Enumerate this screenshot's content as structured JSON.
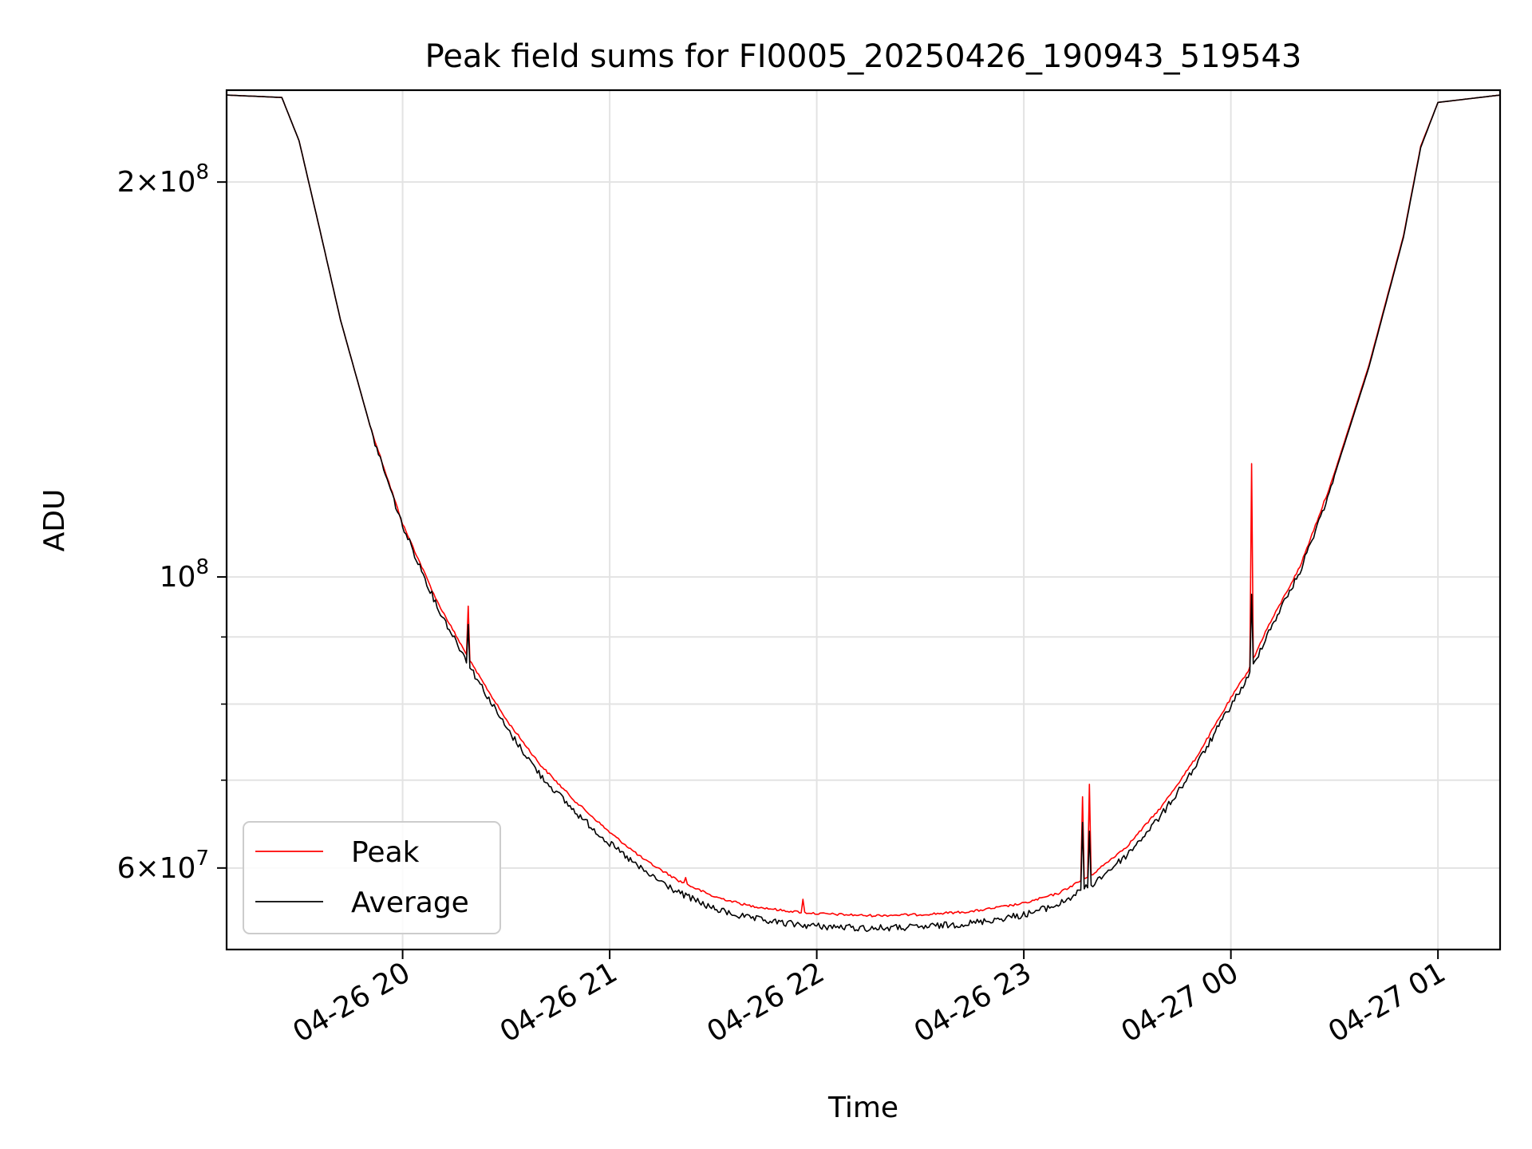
{
  "chart_data": {
    "type": "line",
    "title": "Peak field sums for FI0005_20250426_190943_519543",
    "xlabel": "Time",
    "ylabel": "ADU",
    "y_scale": "log",
    "ylim": [
      52000000,
      235000000
    ],
    "xlim": [
      "2025-04-26 19:09",
      "2025-04-27 01:18"
    ],
    "x_tick_labels": [
      "04-26 20",
      "04-26 21",
      "04-26 22",
      "04-26 23",
      "04-27 00",
      "04-27 01"
    ],
    "y_tick_labels": [
      {
        "value": 200000000,
        "mantissa": "2",
        "exponent": "8"
      },
      {
        "value": 100000000,
        "mantissa": "",
        "exponent": "8"
      },
      {
        "value": 60000000,
        "mantissa": "6",
        "exponent": "7"
      }
    ],
    "grid": true,
    "legend_position": "lower-left",
    "series": [
      {
        "name": "Peak",
        "color": "#ff0000",
        "points": [
          [
            "2025-04-26 19:09",
            233000000
          ],
          [
            "2025-04-26 19:25",
            232000000
          ],
          [
            "2025-04-26 19:30",
            215000000
          ],
          [
            "2025-04-26 19:36",
            184000000
          ],
          [
            "2025-04-26 19:42",
            157000000
          ],
          [
            "2025-04-26 19:50",
            132000000
          ],
          [
            "2025-04-26 20:00",
            110000000
          ],
          [
            "2025-04-26 20:10",
            96000000
          ],
          [
            "2025-04-26 20:20",
            86000000
          ],
          [
            "2025-04-26 20:30",
            78000000
          ],
          [
            "2025-04-26 20:40",
            72000000
          ],
          [
            "2025-04-26 20:50",
            67600000
          ],
          [
            "2025-04-26 21:00",
            64000000
          ],
          [
            "2025-04-26 21:10",
            61000000
          ],
          [
            "2025-04-26 21:20",
            58800000
          ],
          [
            "2025-04-26 21:30",
            57200000
          ],
          [
            "2025-04-26 21:40",
            56300000
          ],
          [
            "2025-04-26 21:50",
            55800000
          ],
          [
            "2025-04-26 22:00",
            55500000
          ],
          [
            "2025-04-26 22:15",
            55300000
          ],
          [
            "2025-04-26 22:30",
            55400000
          ],
          [
            "2025-04-26 22:45",
            55700000
          ],
          [
            "2025-04-26 23:00",
            56500000
          ],
          [
            "2025-04-26 23:10",
            57500000
          ],
          [
            "2025-04-26 23:20",
            59500000
          ],
          [
            "2025-04-26 23:30",
            62500000
          ],
          [
            "2025-04-26 23:40",
            67000000
          ],
          [
            "2025-04-26 23:50",
            73000000
          ],
          [
            "2025-04-27 00:00",
            81000000
          ],
          [
            "2025-04-27 00:05",
            85000000
          ],
          [
            "2025-04-27 00:10",
            91000000
          ],
          [
            "2025-04-27 00:20",
            102000000
          ],
          [
            "2025-04-27 00:30",
            120000000
          ],
          [
            "2025-04-27 00:40",
            145000000
          ],
          [
            "2025-04-27 00:50",
            182000000
          ],
          [
            "2025-04-27 00:55",
            213000000
          ],
          [
            "2025-04-27 01:00",
            230000000
          ],
          [
            "2025-04-27 01:18",
            233000000
          ]
        ],
        "spikes": [
          [
            "2025-04-26 20:19",
            95000000
          ],
          [
            "2025-04-26 21:22",
            59000000
          ],
          [
            "2025-04-26 21:56",
            56800000
          ],
          [
            "2025-04-26 23:17",
            68000000
          ],
          [
            "2025-04-26 23:19",
            69500000
          ],
          [
            "2025-04-27 00:06",
            122000000
          ]
        ]
      },
      {
        "name": "Average",
        "color": "#000000",
        "points": [
          [
            "2025-04-26 19:09",
            233000000
          ],
          [
            "2025-04-26 19:25",
            232000000
          ],
          [
            "2025-04-26 19:30",
            215000000
          ],
          [
            "2025-04-26 19:36",
            184000000
          ],
          [
            "2025-04-26 19:42",
            157000000
          ],
          [
            "2025-04-26 19:50",
            132000000
          ],
          [
            "2025-04-26 20:00",
            110000000
          ],
          [
            "2025-04-26 20:10",
            95500000
          ],
          [
            "2025-04-26 20:20",
            85500000
          ],
          [
            "2025-04-26 20:30",
            77200000
          ],
          [
            "2025-04-26 20:40",
            71000000
          ],
          [
            "2025-04-26 20:50",
            66600000
          ],
          [
            "2025-04-26 21:00",
            63000000
          ],
          [
            "2025-04-26 21:10",
            60000000
          ],
          [
            "2025-04-26 21:20",
            57800000
          ],
          [
            "2025-04-26 21:30",
            56200000
          ],
          [
            "2025-04-26 21:40",
            55300000
          ],
          [
            "2025-04-26 21:50",
            54800000
          ],
          [
            "2025-04-26 22:00",
            54500000
          ],
          [
            "2025-04-26 22:15",
            54300000
          ],
          [
            "2025-04-26 22:30",
            54400000
          ],
          [
            "2025-04-26 22:45",
            54800000
          ],
          [
            "2025-04-26 23:00",
            55600000
          ],
          [
            "2025-04-26 23:10",
            56600000
          ],
          [
            "2025-04-26 23:20",
            58700000
          ],
          [
            "2025-04-26 23:30",
            61800000
          ],
          [
            "2025-04-26 23:40",
            66300000
          ],
          [
            "2025-04-26 23:50",
            72300000
          ],
          [
            "2025-04-27 00:00",
            80300000
          ],
          [
            "2025-04-27 00:05",
            84300000
          ],
          [
            "2025-04-27 00:10",
            90400000
          ],
          [
            "2025-04-27 00:20",
            101500000
          ],
          [
            "2025-04-27 00:30",
            119500000
          ],
          [
            "2025-04-27 00:40",
            144500000
          ],
          [
            "2025-04-27 00:50",
            181500000
          ],
          [
            "2025-04-27 00:55",
            212500000
          ],
          [
            "2025-04-27 01:00",
            230000000
          ],
          [
            "2025-04-27 01:18",
            233000000
          ]
        ],
        "spikes": [
          [
            "2025-04-26 20:19",
            92000000
          ],
          [
            "2025-04-26 23:17",
            65000000
          ],
          [
            "2025-04-26 23:19",
            64000000
          ],
          [
            "2025-04-27 00:06",
            97000000
          ]
        ]
      }
    ]
  }
}
